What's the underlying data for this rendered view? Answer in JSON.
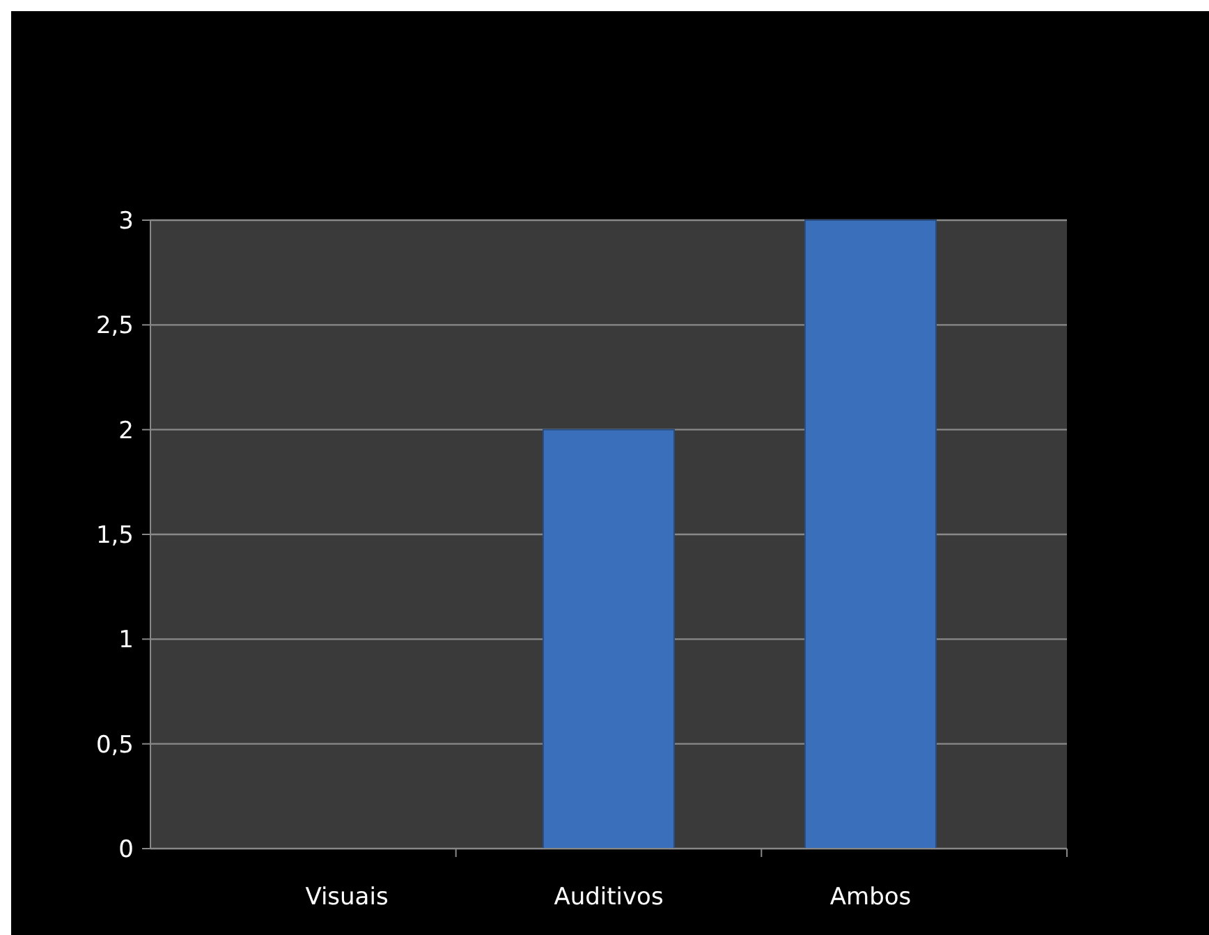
{
  "chart_data": {
    "type": "bar",
    "categories": [
      "Visuais",
      "Auditivos",
      "Ambos"
    ],
    "values": [
      0,
      2,
      3
    ],
    "color": "#3a70bb",
    "ylim": [
      0,
      3
    ],
    "yticks": [
      0,
      {
        "value": 0.5,
        "label": "0,5"
      },
      1,
      {
        "value": 1.5,
        "label": "1,5"
      },
      2,
      {
        "value": 2.5,
        "label": "2,5"
      },
      3
    ],
    "grid": true
  }
}
